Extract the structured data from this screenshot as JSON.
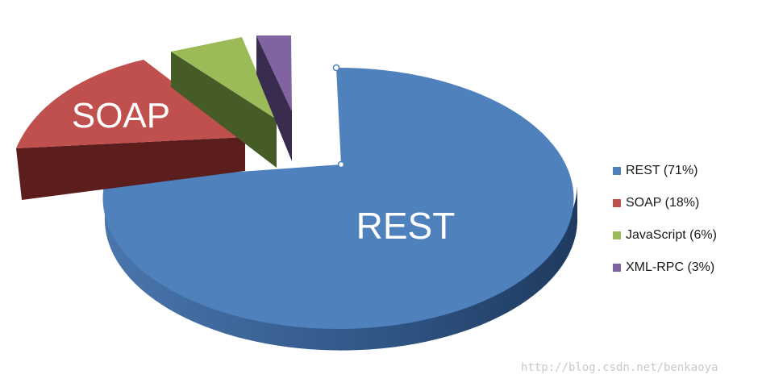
{
  "chart_data": {
    "type": "pie",
    "categories": [
      "REST",
      "SOAP",
      "JavaScript",
      "XML-RPC"
    ],
    "values": [
      71,
      18,
      6,
      3
    ],
    "unit": "%",
    "slice_labels": [
      "REST",
      "SOAP",
      "",
      ""
    ],
    "legend": {
      "placement": "right",
      "entries": [
        "REST (71%)",
        "SOAP (18%)",
        "JavaScript (6%)",
        "XML-RPC (3%)"
      ]
    },
    "colors": [
      "#4f81bd",
      "#c0504d",
      "#9bbb59",
      "#8064a2"
    ],
    "side_colors": [
      "#2b4a74",
      "#5c1a1a",
      "#465c26",
      "#3a2c4f"
    ],
    "style": "3d-exploded"
  },
  "watermark": "http://blog.csdn.net/benkaoya"
}
